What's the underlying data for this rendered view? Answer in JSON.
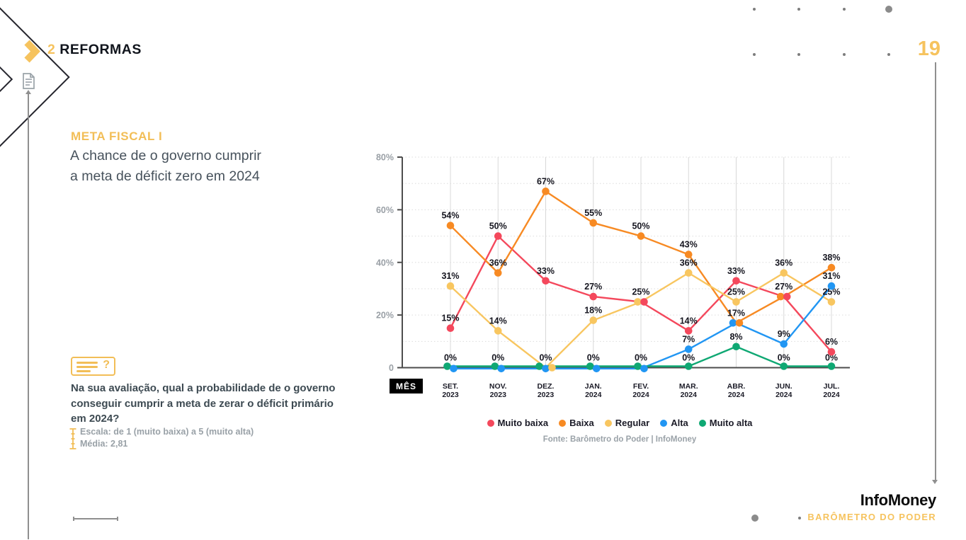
{
  "header": {
    "section_number": "2",
    "section_title": "REFORMAS",
    "page_number": "19"
  },
  "card": {
    "title": "META FISCAL I",
    "subtitle": "A chance de o governo cumprir a meta de déficit zero em 2024"
  },
  "question": {
    "text": "Na sua avaliação, qual a probabilidade de o governo conseguir cumprir a meta de zerar o déficit primário em 2024?",
    "scale_label": "Escala: de 1 (muito baixa) a 5 (muito alta)",
    "average_label": "Média: 2,81"
  },
  "footer": {
    "brand": "InfoMoney",
    "product": "BARÔMETRO DO PODER"
  },
  "colors": {
    "accent_yellow": "#F2BE57",
    "muito_baixa": "#F4485C",
    "baixa": "#F78A23",
    "regular": "#F8C660",
    "alta": "#2196F3",
    "muito_alta": "#0FA873"
  },
  "chart_data": {
    "type": "line",
    "x_axis_label": "MÊS",
    "ylim": [
      0,
      80
    ],
    "yticks": [
      {
        "value": 0,
        "label": "0"
      },
      {
        "value": 20,
        "label": "20%"
      },
      {
        "value": 40,
        "label": "40%"
      },
      {
        "value": 60,
        "label": "60%"
      },
      {
        "value": 80,
        "label": "80%"
      }
    ],
    "grid": {
      "horizontal": "dotted every 10%",
      "vertical": "solid line per month"
    },
    "legend_position": "bottom",
    "months": [
      {
        "label": "SET.",
        "year": "2023"
      },
      {
        "label": "NOV.",
        "year": "2023"
      },
      {
        "label": "DEZ.",
        "year": "2023"
      },
      {
        "label": "JAN.",
        "year": "2024"
      },
      {
        "label": "FEV.",
        "year": "2024"
      },
      {
        "label": "MAR.",
        "year": "2024"
      },
      {
        "label": "ABR.",
        "year": "2024"
      },
      {
        "label": "JUN.",
        "year": "2024"
      },
      {
        "label": "JUL.",
        "year": "2024"
      }
    ],
    "series": [
      {
        "name": "Muito baixa",
        "color": "#F4485C",
        "values": [
          15,
          50,
          33,
          27,
          25,
          14,
          33,
          27,
          6
        ]
      },
      {
        "name": "Baixa",
        "color": "#F78A23",
        "values": [
          54,
          36,
          67,
          55,
          50,
          43,
          17,
          27,
          38
        ]
      },
      {
        "name": "Regular",
        "color": "#F8C660",
        "values": [
          31,
          14,
          0,
          18,
          25,
          36,
          25,
          36,
          25
        ]
      },
      {
        "name": "Alta",
        "color": "#2196F3",
        "values": [
          0,
          0,
          0,
          0,
          0,
          7,
          17,
          9,
          31
        ]
      },
      {
        "name": "Muito alta",
        "color": "#0FA873",
        "values": [
          0,
          0,
          0,
          0,
          0,
          0,
          8,
          0,
          0
        ]
      }
    ],
    "source": "Fonte: Barômetro do Poder | InfoMoney"
  }
}
